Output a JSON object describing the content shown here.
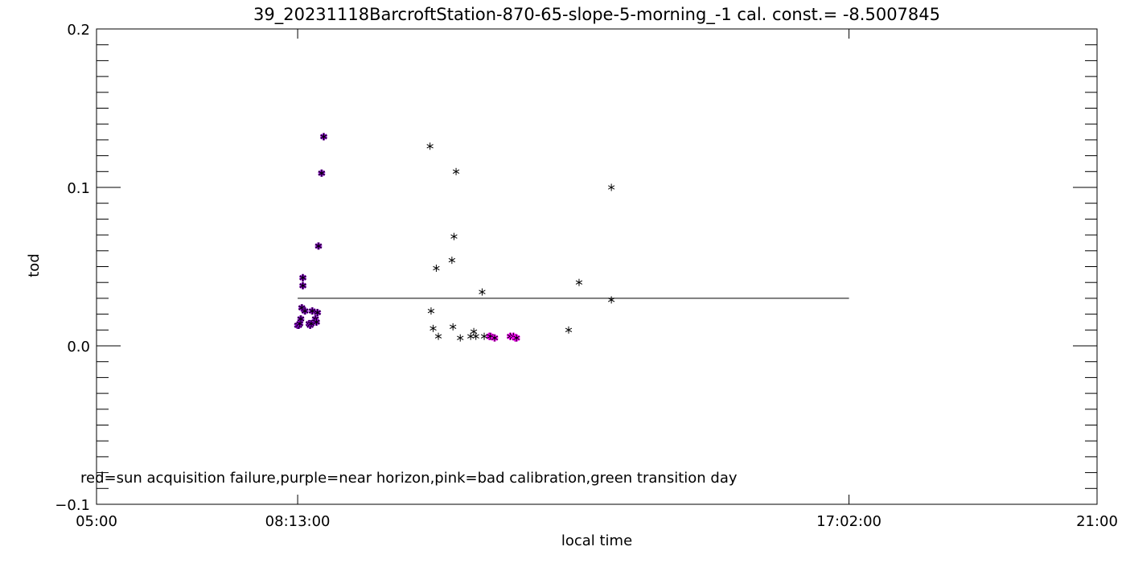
{
  "chart_data": {
    "type": "scatter",
    "title": "39_20231118BarcroftStation-870-65-slope-5-morning_-1 cal. const.= -8.5007845",
    "xlabel": "local time",
    "ylabel": "tod",
    "xlim": [
      "05:00",
      "21:00"
    ],
    "ylim": [
      -0.1,
      0.2
    ],
    "x_tick_labels": [
      "05:00",
      "08:13:00",
      "17:02:00",
      "21:00"
    ],
    "y_tick_labels": [
      "−0.1",
      "0.0",
      "0.1",
      "0.2"
    ],
    "y_ticks": [
      -0.1,
      0.0,
      0.1,
      0.2
    ],
    "annotation": "red=sun acquisition failure,purple=near horizon,pink=bad calibration,green transition day",
    "reference_line": {
      "y": 0.03,
      "x_start": "08:13",
      "x_end": "17:02"
    },
    "colors": {
      "axis": "#000000",
      "normal": "#000000",
      "near_horizon": "#8000c0",
      "bad_calibration": "#ff00ff"
    },
    "series": [
      {
        "flag": "near_horizon",
        "points": [
          [
            "08:13",
            0.013
          ],
          [
            "08:14",
            0.013
          ],
          [
            "08:15",
            0.014
          ],
          [
            "08:16",
            0.017
          ],
          [
            "08:17",
            0.024
          ],
          [
            "08:18",
            0.038
          ],
          [
            "08:18",
            0.043
          ],
          [
            "08:20",
            0.022
          ],
          [
            "08:24",
            0.014
          ],
          [
            "08:25",
            0.013
          ],
          [
            "08:26",
            0.014
          ],
          [
            "08:27",
            0.022
          ],
          [
            "08:30",
            0.017
          ],
          [
            "08:31",
            0.015
          ],
          [
            "08:32",
            0.021
          ],
          [
            "08:33",
            0.063
          ],
          [
            "08:36",
            0.109
          ],
          [
            "08:38",
            0.132
          ]
        ]
      },
      {
        "flag": "bad_calibration",
        "points": [
          [
            "11:17",
            0.006
          ],
          [
            "11:18",
            0.006
          ],
          [
            "11:22",
            0.005
          ],
          [
            "11:37",
            0.006
          ],
          [
            "11:40",
            0.006
          ],
          [
            "11:42",
            0.005
          ],
          [
            "11:43",
            0.005
          ]
        ]
      },
      {
        "flag": "normal",
        "points": [
          [
            "10:20",
            0.126
          ],
          [
            "10:21",
            0.022
          ],
          [
            "10:23",
            0.011
          ],
          [
            "10:26",
            0.049
          ],
          [
            "10:28",
            0.006
          ],
          [
            "10:41",
            0.054
          ],
          [
            "10:42",
            0.012
          ],
          [
            "10:43",
            0.069
          ],
          [
            "10:45",
            0.11
          ],
          [
            "10:49",
            0.005
          ],
          [
            "10:59",
            0.006
          ],
          [
            "11:02",
            0.009
          ],
          [
            "11:04",
            0.006
          ],
          [
            "11:10",
            0.034
          ],
          [
            "11:12",
            0.006
          ],
          [
            "12:33",
            0.01
          ],
          [
            "12:43",
            0.04
          ],
          [
            "13:14",
            0.1
          ],
          [
            "13:14",
            0.029
          ]
        ]
      }
    ]
  }
}
